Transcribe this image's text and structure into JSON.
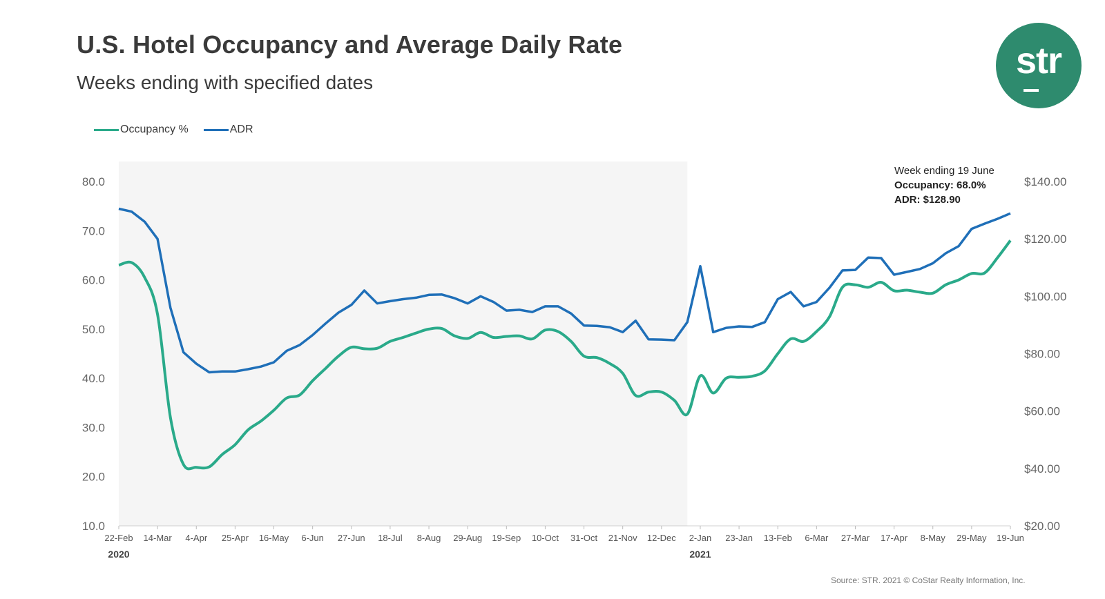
{
  "header": {
    "title": "U.S. Hotel Occupancy and Average Daily Rate",
    "subtitle": "Weeks ending with specified dates"
  },
  "logo": {
    "text": "str",
    "color": "#2e8b6e"
  },
  "annotation": {
    "line1": "Week ending 19 June",
    "line2": "Occupancy: 68.0%",
    "line3": "ADR: $128.90"
  },
  "source": "Source: STR. 2021 © CoStar Realty Information, Inc.",
  "chart_data": {
    "type": "line",
    "x_ticks": [
      "22-Feb",
      "14-Mar",
      "4-Apr",
      "25-Apr",
      "16-May",
      "6-Jun",
      "27-Jun",
      "18-Jul",
      "8-Aug",
      "29-Aug",
      "19-Sep",
      "10-Oct",
      "31-Oct",
      "21-Nov",
      "12-Dec",
      "2-Jan",
      "23-Jan",
      "13-Feb",
      "6-Mar",
      "27-Mar",
      "17-Apr",
      "8-May",
      "29-May",
      "19-Jun"
    ],
    "year_labels": [
      {
        "label": "2020",
        "at_tick": 0
      },
      {
        "label": "2021",
        "at_tick": 15
      }
    ],
    "shaded_region": {
      "from_week": 0,
      "to_week": 44,
      "color": "#f5f5f5"
    },
    "y_left": {
      "ticks": [
        "80.0",
        "70.0",
        "60.0",
        "50.0",
        "40.0",
        "30.0",
        "20.0",
        "10.0"
      ],
      "min": 10,
      "max": 80
    },
    "y_right": {
      "ticks": [
        "$140.00",
        "$120.00",
        "$100.00",
        "$80.00",
        "$60.00",
        "$40.00",
        "$20.00"
      ],
      "min": 20,
      "max": 140
    },
    "series": [
      {
        "name": "Occupancy %",
        "color": "#2aaa8a",
        "axis": "left",
        "values": [
          63.0,
          63.5,
          60.5,
          53.0,
          32.0,
          22.5,
          21.9,
          22.0,
          24.5,
          26.5,
          29.5,
          31.3,
          33.5,
          36.0,
          36.6,
          39.5,
          42.0,
          44.5,
          46.3,
          46.0,
          46.1,
          47.5,
          48.3,
          49.2,
          50.0,
          50.1,
          48.6,
          48.1,
          49.3,
          48.3,
          48.5,
          48.6,
          48.0,
          49.8,
          49.5,
          47.5,
          44.5,
          44.2,
          43.0,
          41.0,
          36.5,
          37.2,
          37.2,
          35.5,
          32.7,
          40.5,
          37.0,
          40.0,
          40.2,
          40.4,
          41.5,
          45.0,
          48.0,
          47.5,
          49.5,
          52.5,
          58.5,
          59.0,
          58.5,
          59.5,
          57.8,
          57.9,
          57.5,
          57.3,
          59.0,
          60.0,
          61.3,
          61.4,
          64.5,
          68.0
        ]
      },
      {
        "name": "ADR",
        "color": "#1f6fb8",
        "axis": "right",
        "values": [
          130.5,
          129.5,
          126.0,
          120.0,
          96.0,
          80.5,
          76.5,
          73.5,
          73.8,
          73.8,
          74.6,
          75.5,
          77.0,
          81.0,
          83.0,
          86.5,
          90.5,
          94.3,
          97.0,
          102.0,
          97.5,
          98.3,
          99.0,
          99.5,
          100.5,
          100.6,
          99.3,
          97.5,
          100.0,
          98.0,
          95.0,
          95.3,
          94.5,
          96.5,
          96.5,
          94.0,
          89.8,
          89.7,
          89.2,
          87.5,
          91.5,
          85.0,
          84.9,
          84.7,
          91.0,
          110.5,
          87.5,
          89.0,
          89.5,
          89.3,
          91.0,
          99.0,
          101.5,
          96.5,
          98.0,
          103.0,
          109.0,
          109.2,
          113.5,
          113.3,
          107.5,
          108.5,
          109.5,
          111.5,
          115.0,
          117.5,
          123.5,
          125.3,
          127.0,
          128.9
        ]
      }
    ]
  }
}
